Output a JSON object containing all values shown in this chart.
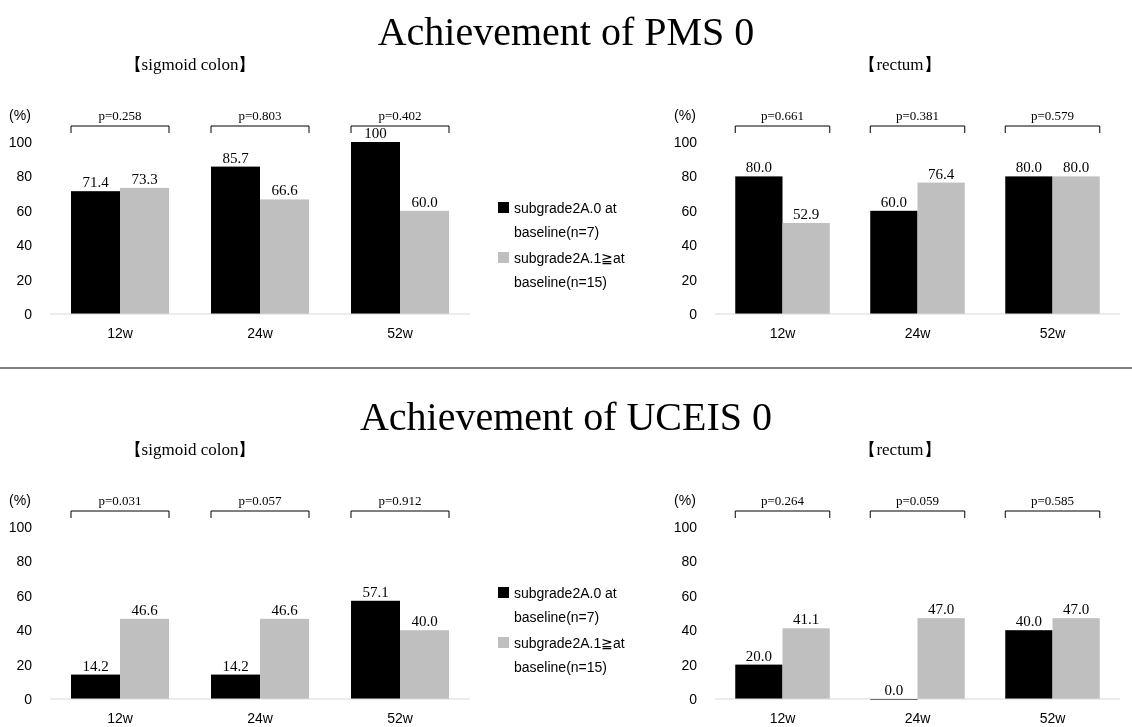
{
  "chart_data": [
    {
      "type": "bar",
      "title": "Achievement of PMS 0",
      "subtitle": "【sigmoid colon】",
      "ylabel": "(%)",
      "categories": [
        "12w",
        "24w",
        "52w"
      ],
      "ylim": [
        0,
        100
      ],
      "yticks": [
        0,
        20,
        40,
        60,
        80,
        100
      ],
      "legend": "right",
      "annotations": [
        "p=0.258",
        "p=0.803",
        "p=0.402"
      ],
      "series": [
        {
          "name": "subgrade2A.0 at baseline(n=7)",
          "color": "#000000",
          "values": [
            71.4,
            85.7,
            100
          ],
          "value_labels": [
            "71.4",
            "85.7",
            "100"
          ]
        },
        {
          "name": "subgrade2A.1≧at baseline(n=15)",
          "color": "#bfbfbf",
          "values": [
            73.3,
            66.6,
            60.0
          ],
          "value_labels": [
            "73.3",
            "66.6",
            "60.0"
          ]
        }
      ]
    },
    {
      "type": "bar",
      "subtitle": "【rectum】",
      "ylabel": "(%)",
      "categories": [
        "12w",
        "24w",
        "52w"
      ],
      "ylim": [
        0,
        100
      ],
      "yticks": [
        0,
        20,
        40,
        60,
        80,
        100
      ],
      "annotations": [
        "p=0.661",
        "p=0.381",
        "p=0.579"
      ],
      "series": [
        {
          "color": "#000000",
          "values": [
            80.0,
            60.0,
            80.0
          ],
          "value_labels": [
            "80.0",
            "60.0",
            "80.0"
          ]
        },
        {
          "color": "#bfbfbf",
          "values": [
            52.9,
            76.4,
            80.0
          ],
          "value_labels": [
            "52.9",
            "76.4",
            "80.0"
          ]
        }
      ]
    },
    {
      "type": "bar",
      "title": "Achievement of UCEIS 0",
      "subtitle": "【sigmoid colon】",
      "ylabel": "(%)",
      "categories": [
        "12w",
        "24w",
        "52w"
      ],
      "ylim": [
        0,
        100
      ],
      "yticks": [
        0,
        20,
        40,
        60,
        80,
        100
      ],
      "legend": "right",
      "annotations": [
        "p=0.031",
        "p=0.057",
        "p=0.912"
      ],
      "series": [
        {
          "name": "subgrade2A.0 at baseline(n=7)",
          "color": "#000000",
          "values": [
            14.2,
            14.2,
            57.1
          ],
          "value_labels": [
            "14.2",
            "14.2",
            "57.1"
          ]
        },
        {
          "name": "subgrade2A.1≧at baseline(n=15)",
          "color": "#bfbfbf",
          "values": [
            46.6,
            46.6,
            40.0
          ],
          "value_labels": [
            "46.6",
            "46.6",
            "40.0"
          ]
        }
      ]
    },
    {
      "type": "bar",
      "subtitle": "【rectum】",
      "ylabel": "(%)",
      "categories": [
        "12w",
        "24w",
        "52w"
      ],
      "ylim": [
        0,
        100
      ],
      "yticks": [
        0,
        20,
        40,
        60,
        80,
        100
      ],
      "annotations": [
        "p=0.264",
        "p=0.059",
        "p=0.585"
      ],
      "series": [
        {
          "color": "#000000",
          "values": [
            20.0,
            0.0,
            40.0
          ],
          "value_labels": [
            "20.0",
            "0.0",
            "40.0"
          ]
        },
        {
          "color": "#bfbfbf",
          "values": [
            41.1,
            47.0,
            47.0
          ],
          "value_labels": [
            "41.1",
            "47.0",
            "47.0"
          ]
        }
      ]
    }
  ]
}
